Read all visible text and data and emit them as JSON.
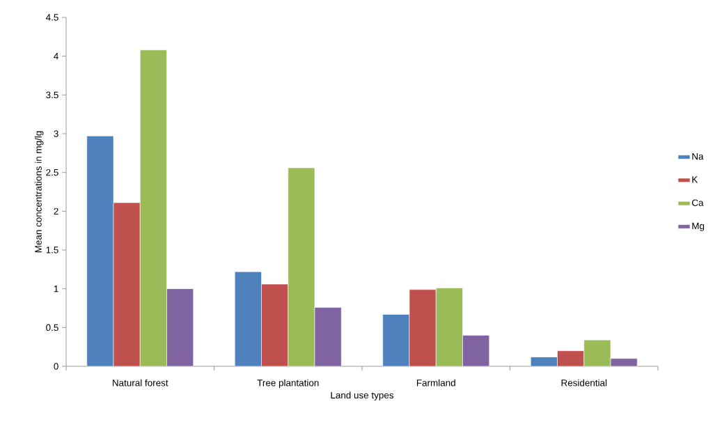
{
  "chart_data": {
    "type": "bar",
    "xlabel": "Land use types",
    "ylabel": "Mean concentrations in mg/lg",
    "categories": [
      "Natural forest",
      "Tree plantation",
      "Farmland",
      "Residential"
    ],
    "series": [
      {
        "name": "Na",
        "color": "#4f81bd",
        "values": [
          2.97,
          1.22,
          0.67,
          0.12
        ]
      },
      {
        "name": "K",
        "color": "#c0504d",
        "values": [
          2.11,
          1.06,
          0.99,
          0.2
        ]
      },
      {
        "name": "Ca",
        "color": "#9bbb59",
        "values": [
          4.08,
          2.56,
          1.01,
          0.34
        ]
      },
      {
        "name": "Mg",
        "color": "#8064a2",
        "values": [
          1.0,
          0.76,
          0.4,
          0.1
        ]
      }
    ],
    "ylim": [
      0,
      4.5
    ],
    "yticks": [
      0,
      0.5,
      1,
      1.5,
      2,
      2.5,
      3,
      3.5,
      4,
      4.5
    ],
    "grid": false,
    "legend": "right"
  }
}
